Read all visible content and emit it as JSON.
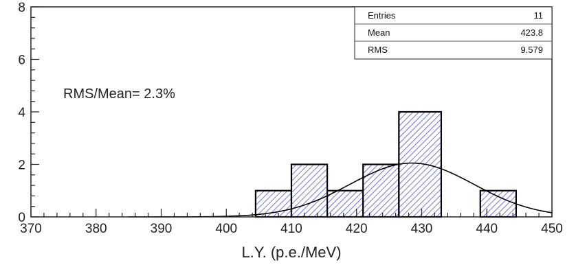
{
  "chart_data": {
    "type": "bar",
    "title": "",
    "xlabel": "L.Y. (p.e./MeV)",
    "ylabel": "",
    "xlim": [
      370,
      450
    ],
    "ylim": [
      0,
      8
    ],
    "grid": false,
    "x_ticks": [
      "370",
      "380",
      "390",
      "400",
      "410",
      "420",
      "430",
      "440",
      "450"
    ],
    "y_ticks": [
      "0",
      "2",
      "4",
      "6",
      "8"
    ],
    "bins": [
      {
        "x0": 404.5,
        "x1": 410.0,
        "count": 1
      },
      {
        "x0": 410.0,
        "x1": 415.5,
        "count": 2
      },
      {
        "x0": 415.5,
        "x1": 421.0,
        "count": 1
      },
      {
        "x0": 421.0,
        "x1": 426.5,
        "count": 2
      },
      {
        "x0": 426.5,
        "x1": 433.0,
        "count": 4
      },
      {
        "x0": 439.0,
        "x1": 444.5,
        "count": 1
      }
    ],
    "fit": {
      "type": "gaussian",
      "mean": 428.5,
      "sigma": 9.5,
      "amplitude": 2.05
    },
    "annotation": "RMS/Mean= 2.3%",
    "stats": [
      {
        "label": "Entries",
        "value": "11"
      },
      {
        "label": "Mean",
        "value": "423.8"
      },
      {
        "label": "RMS",
        "value": "9.579"
      }
    ],
    "colors": {
      "fill": "#3333cc",
      "outline": "#000000",
      "fit": "#000000"
    }
  }
}
